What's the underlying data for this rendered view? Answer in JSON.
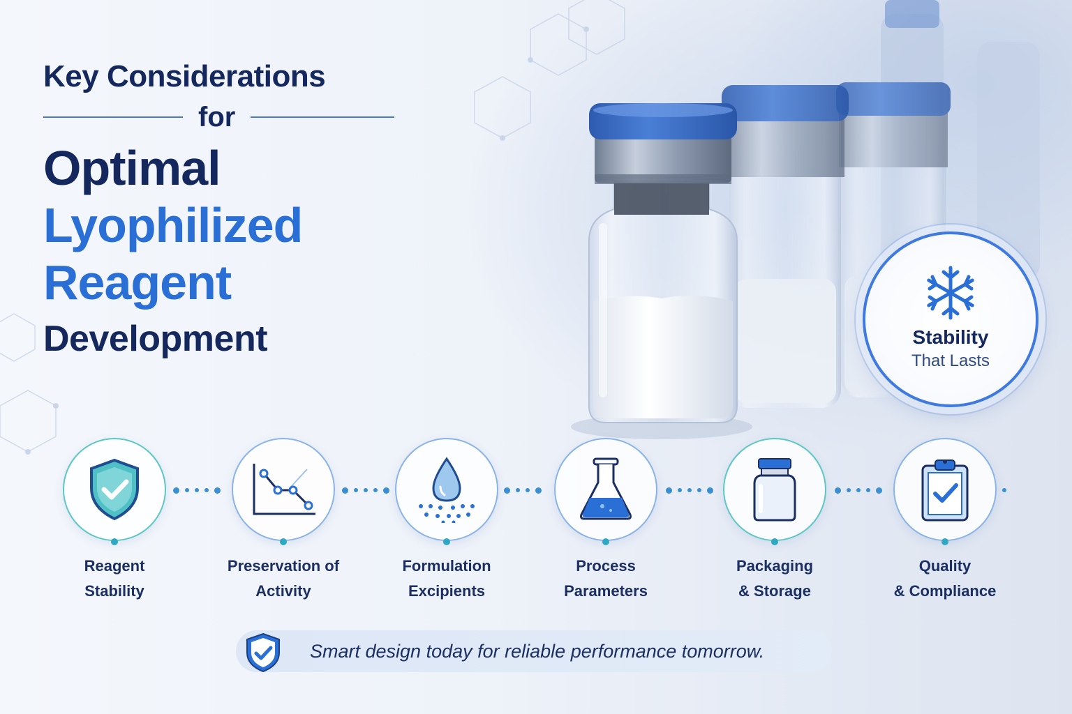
{
  "title": {
    "line1": "Key Considerations",
    "line2": "for",
    "line3": "Optimal",
    "line4": "Lyophilized",
    "line5": "Reagent",
    "line6": "Development"
  },
  "badge": {
    "icon": "snowflake-icon",
    "line1": "Stability",
    "line2": "That Lasts"
  },
  "steps": [
    {
      "icon": "shield-check-icon",
      "line1": "Reagent",
      "line2": "Stability"
    },
    {
      "icon": "declining-graph-icon",
      "line1": "Preservation of",
      "line2": "Activity"
    },
    {
      "icon": "droplet-icon",
      "line1": "Formulation",
      "line2": "Excipients"
    },
    {
      "icon": "flask-icon",
      "line1": "Process",
      "line2": "Parameters"
    },
    {
      "icon": "vial-icon",
      "line1": "Packaging",
      "line2": "& Storage"
    },
    {
      "icon": "clipboard-check-icon",
      "line1": "Quality",
      "line2": "& Compliance"
    }
  ],
  "footer": {
    "icon": "shield-check-icon",
    "text": "Smart design today for reliable performance tomorrow."
  },
  "colors": {
    "navy": "#14285e",
    "accent_blue": "#2a6fd6",
    "teal": "#5cc7c4",
    "cap_blue": "#3d6fc4"
  }
}
